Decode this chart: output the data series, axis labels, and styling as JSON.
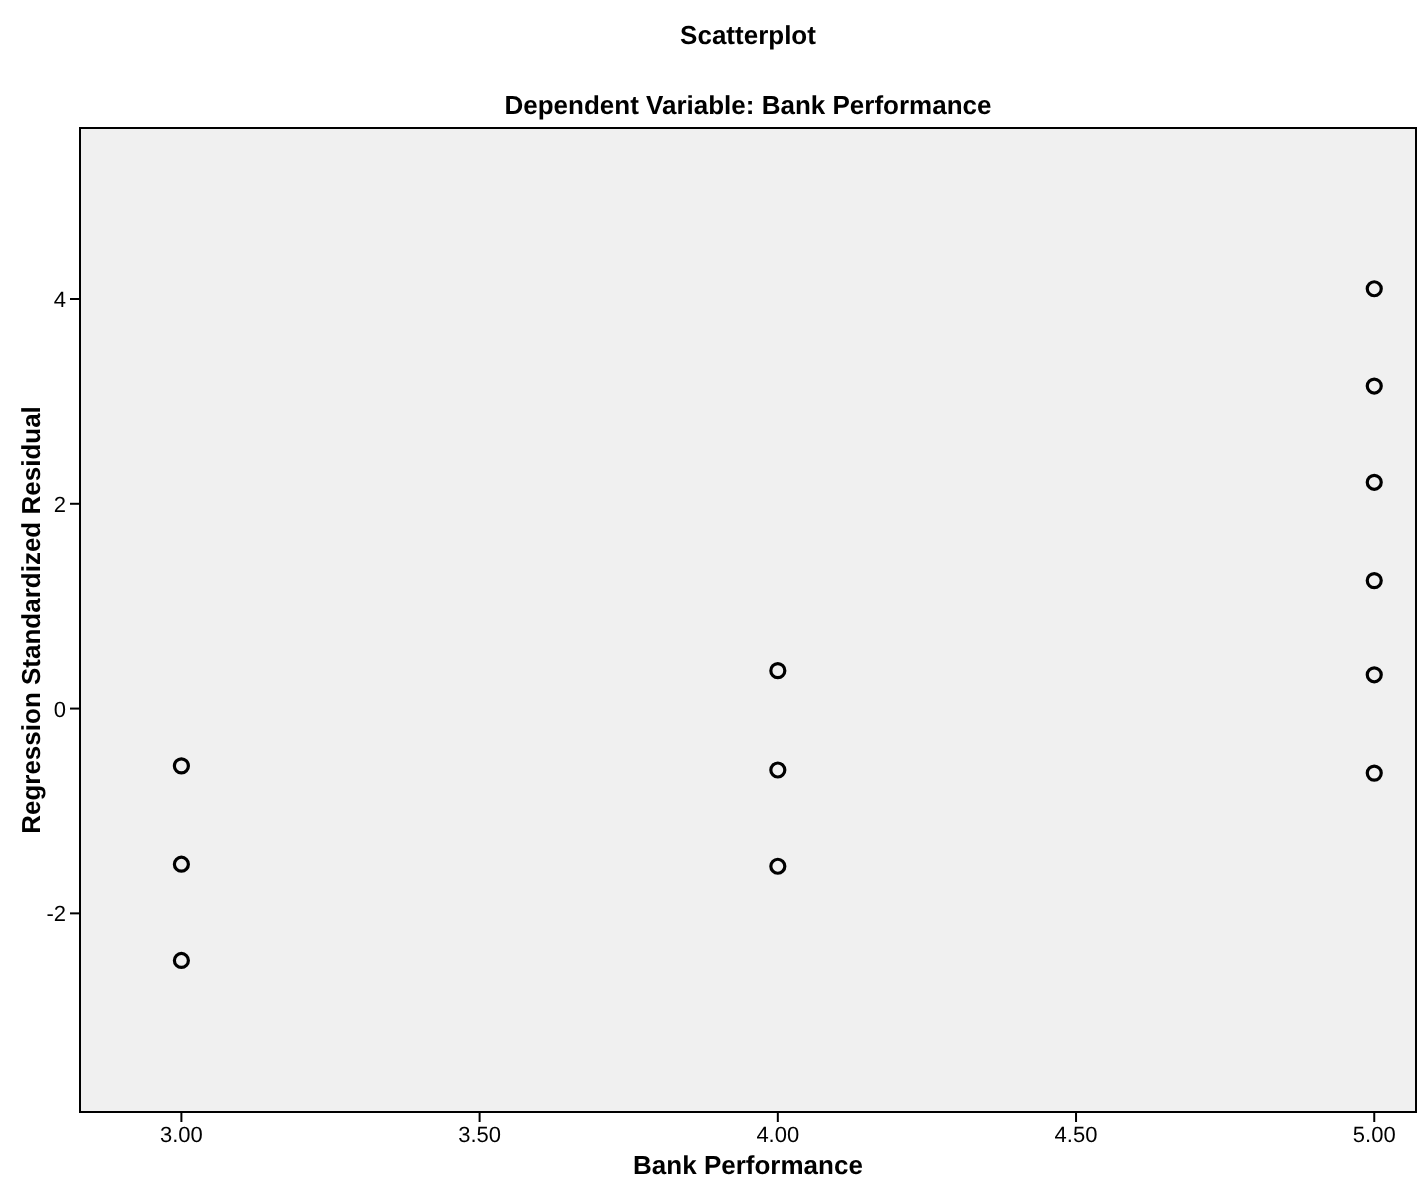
{
  "chart_data": {
    "type": "scatter",
    "title": "Scatterplot",
    "subtitle": "Dependent Variable: Bank Performance",
    "xlabel": "Bank Performance",
    "ylabel": "Regression Standardized Residual",
    "x": [
      3,
      3,
      3,
      4,
      4,
      4,
      5,
      5,
      5,
      5,
      5,
      5
    ],
    "values": [
      -0.56,
      -1.52,
      -2.46,
      0.37,
      -0.6,
      -1.54,
      4.1,
      3.15,
      2.21,
      1.25,
      0.33,
      -0.63
    ],
    "color": "#000000",
    "marker": "circle",
    "grid": false,
    "xlim": [
      2.83,
      5.07
    ],
    "ylim": [
      -3.94,
      5.67
    ],
    "xticks": [
      {
        "value": 3,
        "label": "3.00"
      },
      {
        "value": 3.5,
        "label": "3.50"
      },
      {
        "value": 4,
        "label": "4.00"
      },
      {
        "value": 4.5,
        "label": "4.50"
      },
      {
        "value": 5,
        "label": "5.00"
      }
    ],
    "yticks": [
      -2,
      0,
      2,
      4
    ]
  }
}
